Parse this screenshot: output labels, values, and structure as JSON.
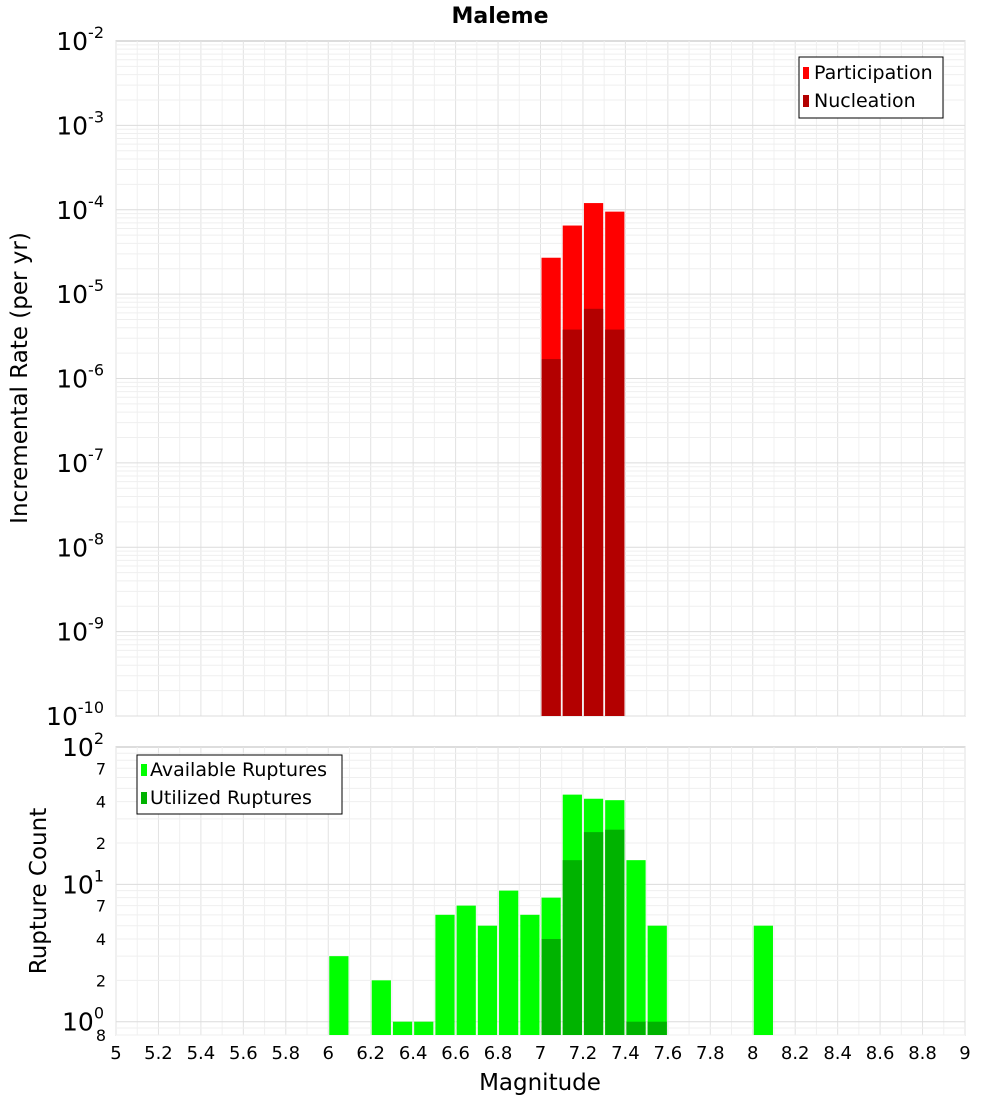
{
  "chart_data": [
    {
      "type": "bar",
      "title": "Maleme",
      "ylabel": "Incremental Rate (per yr)",
      "y_scale": "log",
      "ylim": [
        1e-10,
        0.01
      ],
      "xlim": [
        5,
        9
      ],
      "x_bin_width": 0.1,
      "y_tick_labels": [
        {
          "value": 0.01,
          "base": "10",
          "exp": "-2"
        },
        {
          "value": 0.001,
          "base": "10",
          "exp": "-3"
        },
        {
          "value": 0.0001,
          "base": "10",
          "exp": "-4"
        },
        {
          "value": 1e-05,
          "base": "10",
          "exp": "-5"
        },
        {
          "value": 1e-06,
          "base": "10",
          "exp": "-6"
        },
        {
          "value": 1e-07,
          "base": "10",
          "exp": "-7"
        },
        {
          "value": 1e-08,
          "base": "10",
          "exp": "-8"
        },
        {
          "value": 1e-09,
          "base": "10",
          "exp": "-9"
        },
        {
          "value": 1e-10,
          "base": "10",
          "exp": "-10"
        }
      ],
      "legend": {
        "position": "top-right",
        "entries": [
          "Participation",
          "Nucleation"
        ]
      },
      "series": [
        {
          "name": "Participation",
          "color": "#ff0000",
          "x": [
            7.05,
            7.15,
            7.25,
            7.35
          ],
          "values": [
            2.7e-05,
            6.5e-05,
            0.00012,
            9.5e-05
          ]
        },
        {
          "name": "Nucleation",
          "color": "#b30000",
          "x": [
            7.05,
            7.15,
            7.25,
            7.35
          ],
          "values": [
            1.7e-06,
            3.8e-06,
            6.7e-06,
            3.8e-06
          ]
        }
      ]
    },
    {
      "type": "bar",
      "xlabel": "Magnitude",
      "ylabel": "Rupture Count",
      "y_scale": "log",
      "ylim": [
        0.8,
        100
      ],
      "xlim": [
        5,
        9
      ],
      "x_bin_width": 0.1,
      "x_tick_labels": [
        "5",
        "5.2",
        "5.4",
        "5.6",
        "5.8",
        "6",
        "6.2",
        "6.4",
        "6.6",
        "6.8",
        "7",
        "7.2",
        "7.4",
        "7.6",
        "7.8",
        "8",
        "8.2",
        "8.4",
        "8.6",
        "8.8",
        "9"
      ],
      "y_tick_labels": [
        {
          "value": 100,
          "base": "10",
          "exp": "2"
        },
        {
          "value": 70,
          "label": "7"
        },
        {
          "value": 40,
          "label": "4"
        },
        {
          "value": 20,
          "label": "2"
        },
        {
          "value": 10,
          "base": "10",
          "exp": "1"
        },
        {
          "value": 7,
          "label": "7"
        },
        {
          "value": 4,
          "label": "4"
        },
        {
          "value": 2,
          "label": "2"
        },
        {
          "value": 1,
          "base": "10",
          "exp": "0"
        },
        {
          "value": 0.8,
          "label": "8"
        }
      ],
      "legend": {
        "position": "top-left",
        "entries": [
          "Available Ruptures",
          "Utilized Ruptures"
        ]
      },
      "series": [
        {
          "name": "Available Ruptures",
          "color": "#00ff00",
          "x": [
            6.05,
            6.25,
            6.35,
            6.45,
            6.55,
            6.65,
            6.75,
            6.85,
            6.95,
            7.05,
            7.15,
            7.25,
            7.35,
            7.45,
            7.55,
            8.05
          ],
          "values": [
            3,
            2,
            1,
            1,
            6,
            7,
            5,
            9,
            6,
            8,
            45,
            42,
            41,
            15,
            5,
            5
          ]
        },
        {
          "name": "Utilized Ruptures",
          "color": "#00b300",
          "x": [
            7.05,
            7.15,
            7.25,
            7.35,
            7.45,
            7.55
          ],
          "values": [
            4,
            15,
            24,
            25,
            1,
            1
          ]
        }
      ]
    }
  ]
}
